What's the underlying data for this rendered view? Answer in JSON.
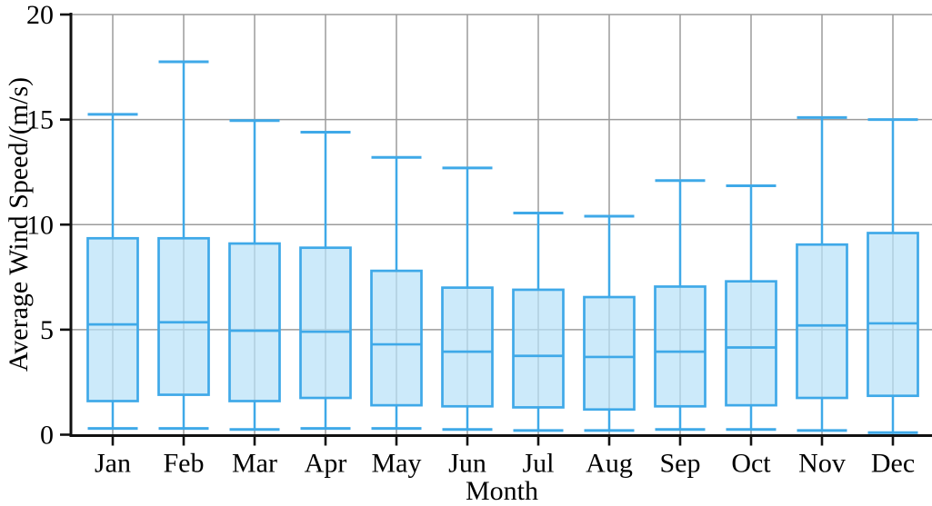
{
  "chart_data": {
    "type": "boxplot",
    "title": "",
    "xlabel": "Month",
    "ylabel": "Average Wind Speed/(m/s)",
    "categories": [
      "Jan",
      "Feb",
      "Mar",
      "Apr",
      "May",
      "Jun",
      "Jul",
      "Aug",
      "Sep",
      "Oct",
      "Nov",
      "Dec"
    ],
    "ylim": [
      0,
      20
    ],
    "yticks": [
      0,
      5,
      10,
      15,
      20
    ],
    "grid": true,
    "legend": false,
    "units": "m/s",
    "series": [
      {
        "name": "Jan",
        "whisker_low": 0.3,
        "q1": 1.6,
        "median": 5.25,
        "q3": 9.35,
        "whisker_high": 15.25
      },
      {
        "name": "Feb",
        "whisker_low": 0.3,
        "q1": 1.9,
        "median": 5.35,
        "q3": 9.35,
        "whisker_high": 17.75
      },
      {
        "name": "Mar",
        "whisker_low": 0.25,
        "q1": 1.6,
        "median": 4.95,
        "q3": 9.1,
        "whisker_high": 14.95
      },
      {
        "name": "Apr",
        "whisker_low": 0.3,
        "q1": 1.75,
        "median": 4.9,
        "q3": 8.9,
        "whisker_high": 14.4
      },
      {
        "name": "May",
        "whisker_low": 0.3,
        "q1": 1.4,
        "median": 4.3,
        "q3": 7.8,
        "whisker_high": 13.2
      },
      {
        "name": "Jun",
        "whisker_low": 0.25,
        "q1": 1.35,
        "median": 3.95,
        "q3": 7.0,
        "whisker_high": 12.7
      },
      {
        "name": "Jul",
        "whisker_low": 0.2,
        "q1": 1.3,
        "median": 3.75,
        "q3": 6.9,
        "whisker_high": 10.55
      },
      {
        "name": "Aug",
        "whisker_low": 0.2,
        "q1": 1.2,
        "median": 3.7,
        "q3": 6.55,
        "whisker_high": 10.4
      },
      {
        "name": "Sep",
        "whisker_low": 0.25,
        "q1": 1.35,
        "median": 3.95,
        "q3": 7.05,
        "whisker_high": 12.1
      },
      {
        "name": "Oct",
        "whisker_low": 0.25,
        "q1": 1.4,
        "median": 4.15,
        "q3": 7.3,
        "whisker_high": 11.85
      },
      {
        "name": "Nov",
        "whisker_low": 0.2,
        "q1": 1.75,
        "median": 5.2,
        "q3": 9.05,
        "whisker_high": 15.1
      },
      {
        "name": "Dec",
        "whisker_low": 0.1,
        "q1": 1.85,
        "median": 5.3,
        "q3": 9.6,
        "whisker_high": 15.0
      }
    ],
    "colors": {
      "box_fill": "#B9E2F8",
      "box_edge": "#3FA9E8",
      "grid": "#9B9B9B",
      "axis": "#111111",
      "text": "#000000"
    }
  }
}
